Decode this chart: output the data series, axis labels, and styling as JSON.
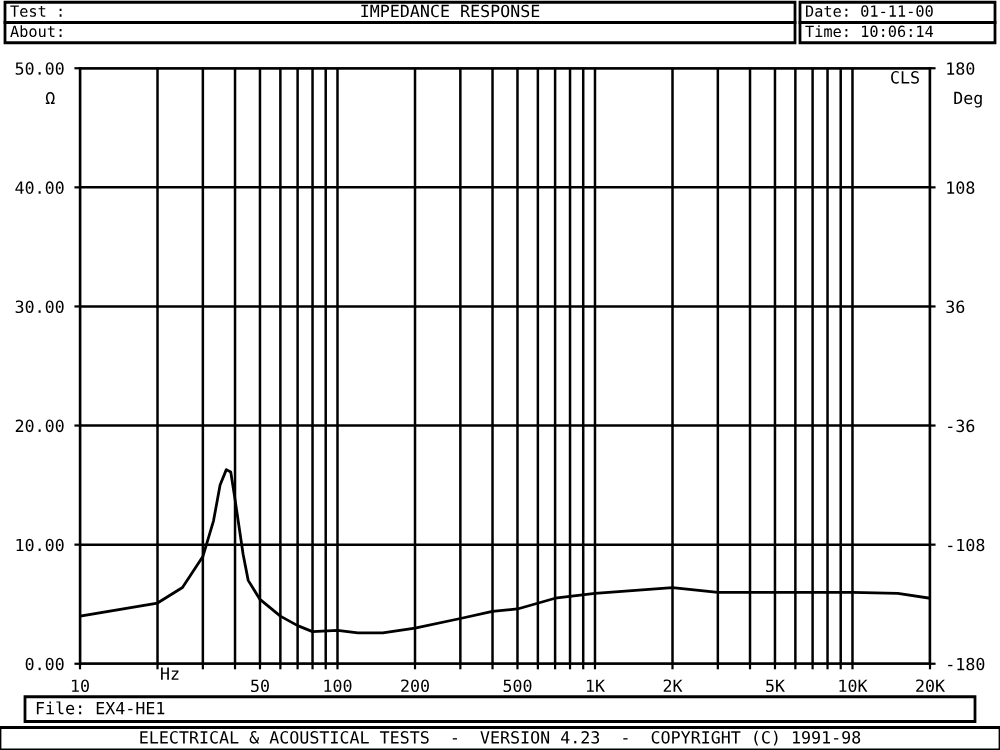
{
  "chart_data": {
    "type": "line",
    "title": "IMPEDANCE RESPONSE",
    "ylabel": "Ω",
    "y2label": "Deg",
    "x": [
      10,
      20,
      25,
      30,
      33,
      35,
      37,
      38.5,
      40,
      43,
      45,
      50,
      60,
      70,
      80,
      100,
      120,
      150,
      200,
      300,
      400,
      500,
      700,
      1000,
      2000,
      3000,
      5000,
      10000,
      15000,
      20000
    ],
    "series": [
      {
        "color": "#000000",
        "values": [
          4.0,
          5.1,
          6.4,
          9.0,
          12,
          15,
          16.3,
          16.1,
          13.8,
          9.2,
          7.0,
          5.4,
          4.0,
          3.2,
          2.7,
          2.8,
          2.6,
          2.6,
          3.0,
          3.8,
          4.4,
          4.6,
          5.5,
          5.9,
          6.4,
          6.0,
          6.0,
          6.0,
          5.9,
          5.5
        ]
      }
    ],
    "log": "x",
    "xlim": [
      10,
      20000
    ],
    "ylim": [
      0,
      50
    ],
    "y2lim": [
      -180,
      180
    ],
    "xticks": [
      10,
      {
        "value": 20,
        "label": null
      },
      {
        "value": 30,
        "label": null
      },
      {
        "value": 40,
        "label": null
      },
      50,
      {
        "value": 60,
        "label": null
      },
      {
        "value": 70,
        "label": null
      },
      {
        "value": 80,
        "label": null
      },
      {
        "value": 90,
        "label": null
      },
      100,
      200,
      {
        "value": 300,
        "label": null
      },
      {
        "value": 400,
        "label": null
      },
      500,
      {
        "value": 600,
        "label": null
      },
      {
        "value": 700,
        "label": null
      },
      {
        "value": 800,
        "label": null
      },
      {
        "value": 900,
        "label": null
      },
      {
        "value": 1000,
        "label": "1K"
      },
      {
        "value": 2000,
        "label": "2K"
      },
      {
        "value": 3000,
        "label": null
      },
      {
        "value": 4000,
        "label": null
      },
      {
        "value": 5000,
        "label": "5K"
      },
      {
        "value": 6000,
        "label": null
      },
      {
        "value": 7000,
        "label": null
      },
      {
        "value": 8000,
        "label": null
      },
      {
        "value": 9000,
        "label": null
      },
      {
        "value": 10000,
        "label": "10K"
      },
      {
        "value": 20000,
        "label": "20K"
      }
    ],
    "yticks": [
      {
        "value": 0,
        "label": "0.00"
      },
      {
        "value": 10,
        "label": "10.00"
      },
      {
        "value": 20,
        "label": "20.00"
      },
      {
        "value": 30,
        "label": "30.00"
      },
      {
        "value": 40,
        "label": "40.00"
      },
      {
        "value": 50,
        "label": "50.00"
      }
    ],
    "y2ticks": [
      -180,
      -108,
      -36,
      36,
      108,
      180
    ],
    "grid": true,
    "annotations": [
      "Test :",
      "About:",
      "Date: 01-11-00",
      "Time: 10:06:14",
      "File: EX4-HE1",
      "Hz",
      "CLS",
      "ELECTRICAL & ACOUSTICAL TESTS  -  VERSION 4.23  -  COPYRIGHT (C) 1991-98"
    ]
  }
}
